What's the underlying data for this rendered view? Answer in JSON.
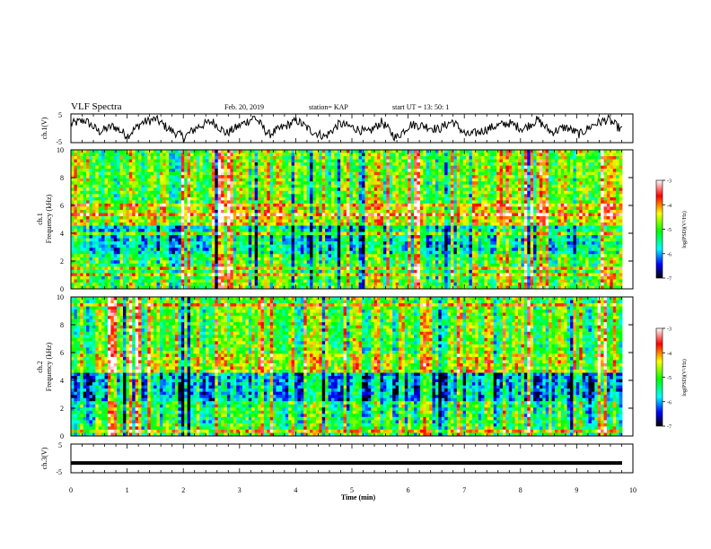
{
  "header": {
    "title": "VLF Spectra",
    "date": "Feb. 20, 2019",
    "station": "station= KAP",
    "start_time": "start  UT  =   13: 50: 1"
  },
  "chart_data": [
    {
      "type": "line",
      "panel": "ch1-waveform",
      "ylabel": "ch.1(V)",
      "ylim": [
        -5,
        5
      ],
      "yticks": [
        "5",
        "-5"
      ],
      "xlim": [
        0,
        10
      ],
      "series": [
        {
          "values": [
            1.5,
            2.8,
            -1.2,
            0.8,
            -2.6,
            1.9,
            3.2,
            -0.5,
            -3.1,
            0.6,
            2.4,
            -1.8,
            1.1,
            3.9,
            -2.2,
            0.3,
            2.7,
            -0.9,
            -2.9,
            1.6,
            0.2,
            -1.6,
            2.2,
            -3.4,
            1.3,
            0.9,
            -0.4,
            2.5,
            -2.5,
            -1.1,
            0.7,
            1.8,
            -0.2,
            2.9,
            -1.4,
            0.4,
            -2.1,
            1.4,
            3.1,
            -0.7
          ]
        }
      ]
    },
    {
      "type": "heatmap",
      "panel": "ch1-spectrogram",
      "ylabel_line1": "ch.1",
      "ylabel_line2": "Frequency (kHz)",
      "ylim": [
        0,
        10
      ],
      "yticks": [
        "0",
        "2",
        "4",
        "6",
        "8",
        "10"
      ],
      "xlim": [
        0,
        10
      ],
      "colorbar": {
        "label": "log(PSD)(V²/Hz)",
        "ticks": [
          "-3",
          "-4",
          "-5",
          "-6",
          "-7"
        ],
        "range": [
          -7,
          -3
        ]
      }
    },
    {
      "type": "heatmap",
      "panel": "ch2-spectrogram",
      "ylabel_line1": "ch.2",
      "ylabel_line2": "Frequency (kHz)",
      "ylim": [
        0,
        10
      ],
      "yticks": [
        "0",
        "2",
        "4",
        "6",
        "8",
        "10"
      ],
      "xlim": [
        0,
        10
      ],
      "colorbar": {
        "label": "log(PSD)(V²/Hz)",
        "ticks": [
          "-3",
          "-4",
          "-5",
          "-6",
          "-7"
        ],
        "range": [
          -7,
          -3
        ]
      }
    },
    {
      "type": "line",
      "panel": "ch3-waveform",
      "ylabel": "ch.3(V)",
      "ylim": [
        -5,
        5
      ],
      "yticks": [
        "5",
        "-5"
      ],
      "xlim": [
        0,
        10
      ],
      "xlabel": "Time  (min)",
      "xticks": [
        "0",
        "1",
        "2",
        "3",
        "4",
        "5",
        "6",
        "7",
        "8",
        "9",
        "10"
      ],
      "series": [
        {
          "values": [
            -1.6,
            -1.6
          ]
        }
      ]
    }
  ],
  "colormap": [
    "#000000",
    "#0000ff",
    "#00ffff",
    "#00ff00",
    "#ffff00",
    "#ff0000",
    "#ffffff"
  ]
}
